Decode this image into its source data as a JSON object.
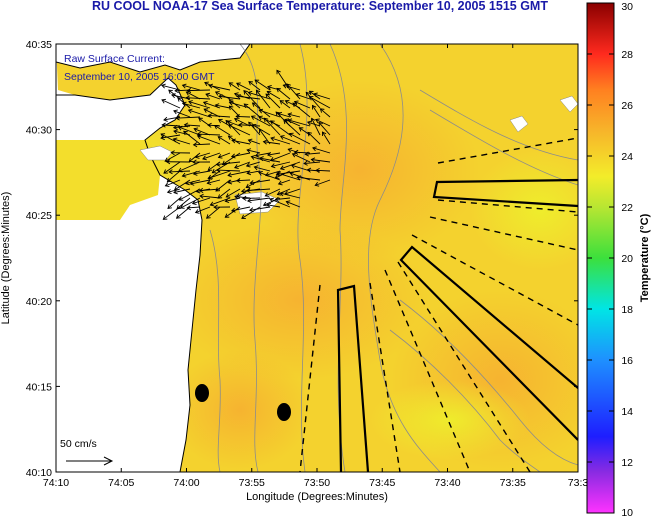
{
  "title": "RU COOL  NOAA-17  Sea Surface Temperature:  September 10, 2005 1515 GMT",
  "annotation": {
    "line1": "Raw Surface Current:",
    "line2": "September 10, 2005 16:00 GMT"
  },
  "scale": {
    "label": "50 cm/s"
  },
  "axes": {
    "xlabel": "Longitude (Degrees:Minutes)",
    "ylabel": "Latitude (Degrees:Minutes)",
    "xticks": [
      "74:10",
      "74:05",
      "74:00",
      "73:55",
      "73:50",
      "73:45",
      "73:40",
      "73:35",
      "73:3"
    ],
    "yticks": [
      "40:35",
      "40:30",
      "40:25",
      "40:20",
      "40:15",
      "40:10"
    ]
  },
  "colorbar": {
    "label": "Temperature (°C)",
    "min": 10,
    "max": 30,
    "ticks": [
      "30",
      "28",
      "26",
      "24",
      "22",
      "20",
      "18",
      "16",
      "14",
      "12",
      "10"
    ]
  },
  "colors": {
    "title": "#1a1aa8",
    "sst_warm": "#f7c432",
    "sst_mid": "#f3de2c",
    "land": "#ffffff"
  }
}
